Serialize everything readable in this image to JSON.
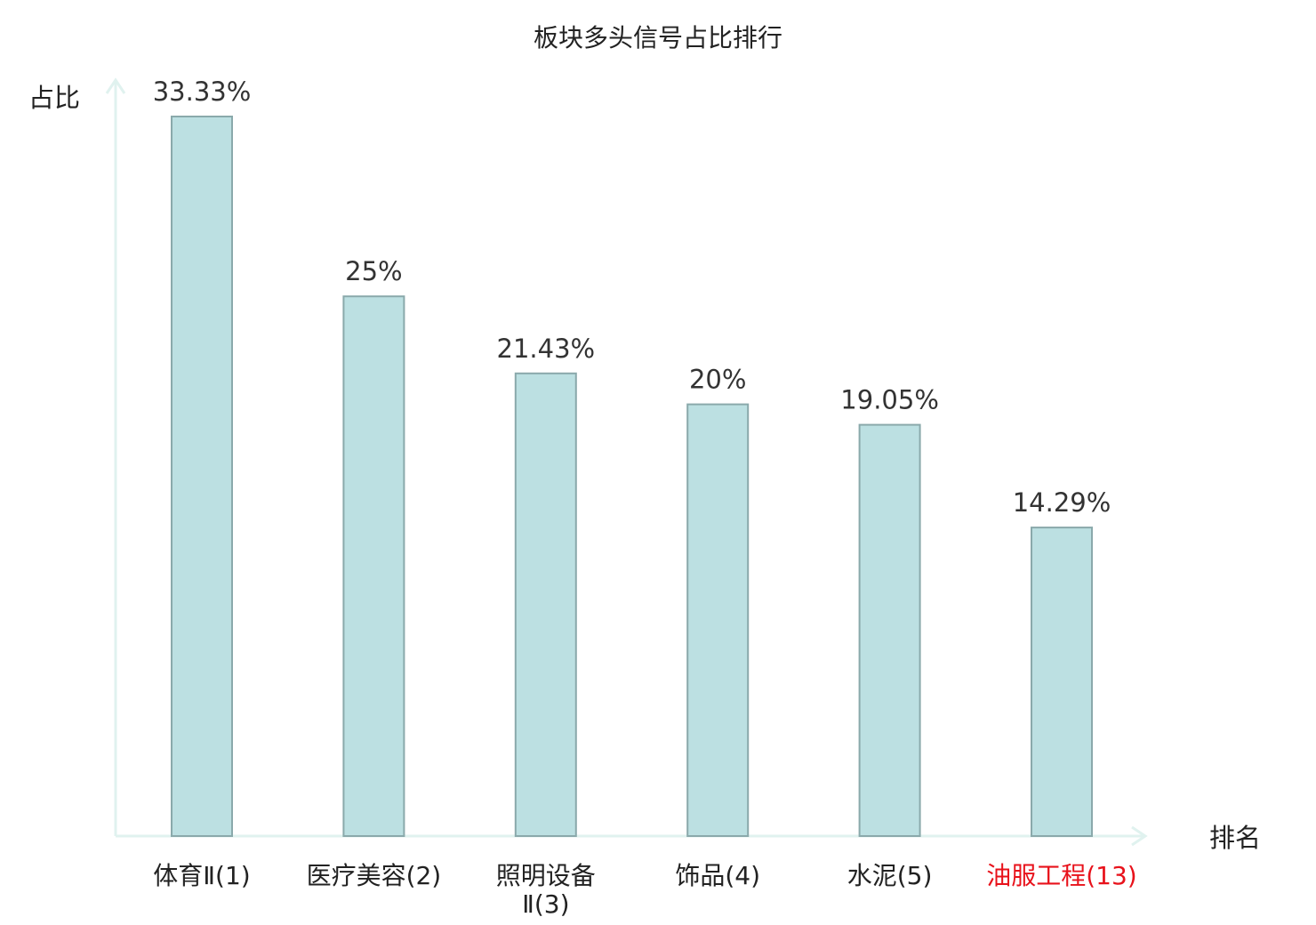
{
  "chart_data": {
    "type": "bar",
    "title": "板块多头信号占比排行",
    "ylabel": "占比",
    "xlabel": "排名",
    "categories": [
      "体育Ⅱ(1)",
      "医疗美容(2)",
      "照明设备Ⅱ(3)",
      "饰品(4)",
      "水泥(5)",
      "油服工程(13)"
    ],
    "category_lines": [
      [
        "体育Ⅱ(1)"
      ],
      [
        "医疗美容(2)"
      ],
      [
        "照明设备",
        "Ⅱ(3)"
      ],
      [
        "饰品(4)"
      ],
      [
        "水泥(5)"
      ],
      [
        "油服工程(13)"
      ]
    ],
    "values": [
      33.33,
      25,
      21.43,
      20,
      19.05,
      14.29
    ],
    "data_labels": [
      "33.33%",
      "25%",
      "21.43%",
      "20%",
      "19.05%",
      "14.29%"
    ],
    "highlight_index": 5,
    "ylim": [
      0,
      33.33
    ],
    "grid": false,
    "legend": "none"
  },
  "colors": {
    "bar_fill": "#bce0e2",
    "bar_stroke": "#8aa9ab",
    "axis": "#e0f2ef",
    "text": "#222222",
    "value_text": "#333333",
    "highlight": "#e8121b"
  }
}
